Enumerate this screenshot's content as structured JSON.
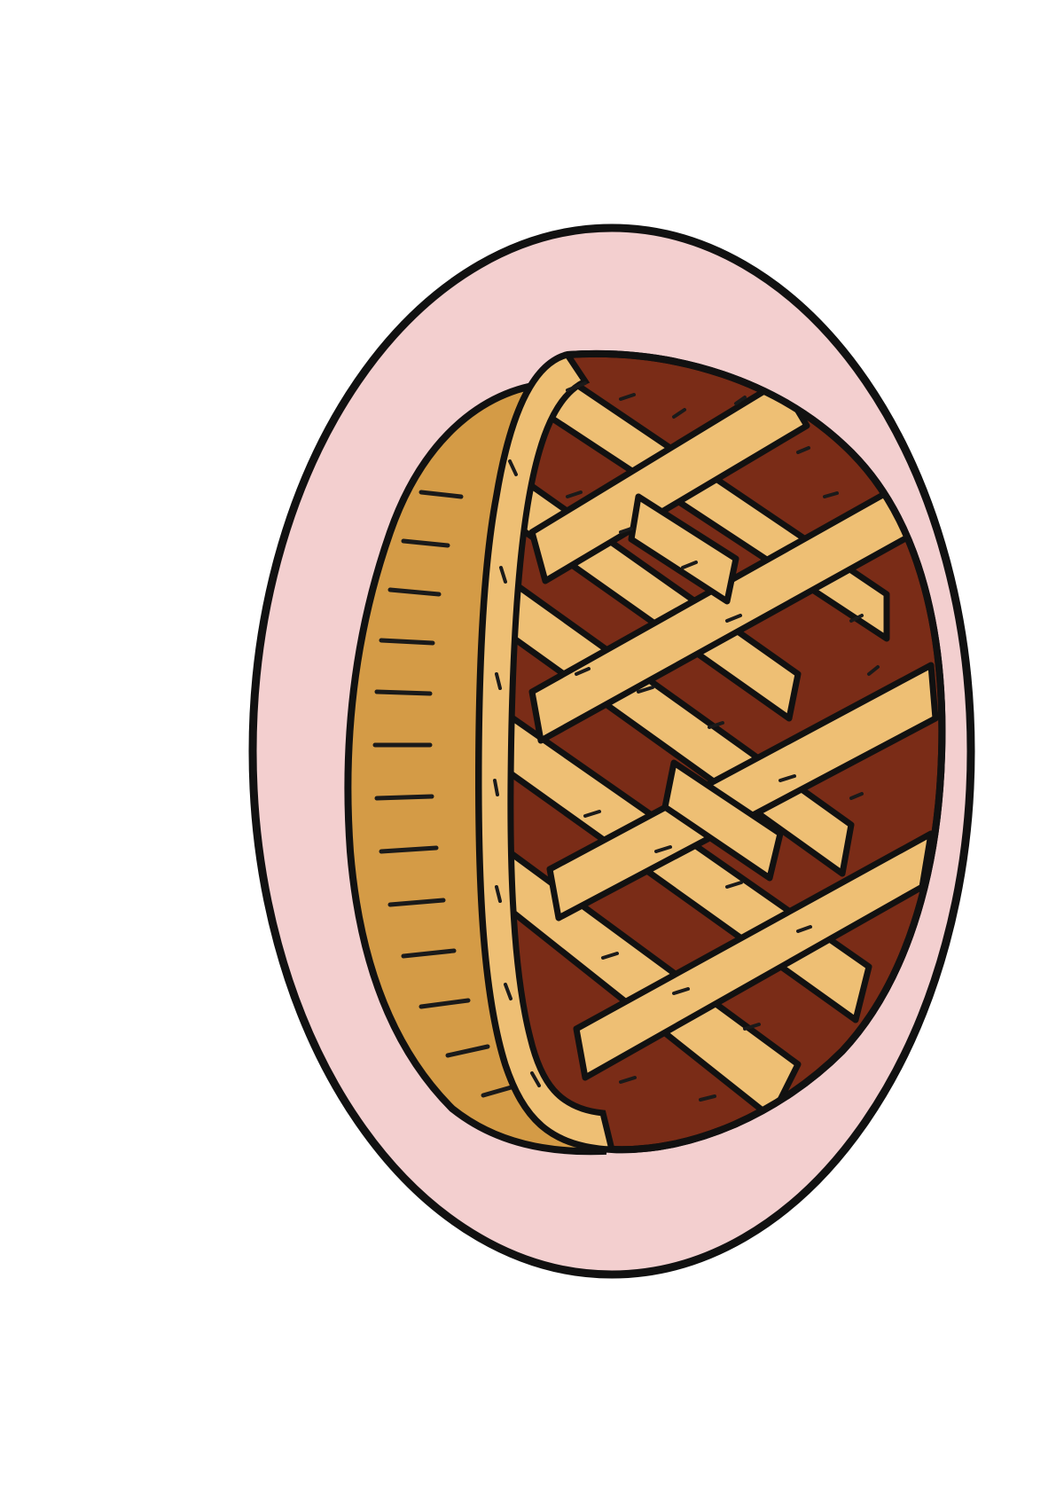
{
  "scene": {
    "subject": "lattice-pie-on-plate",
    "colors": {
      "background": "#ffffff",
      "outline": "#111111",
      "plate": "#f3cfcf",
      "crust": "#eebf74",
      "crust_side": "#d49b46",
      "filling": "#7a2c17",
      "dash": "#1a1a1a"
    }
  }
}
